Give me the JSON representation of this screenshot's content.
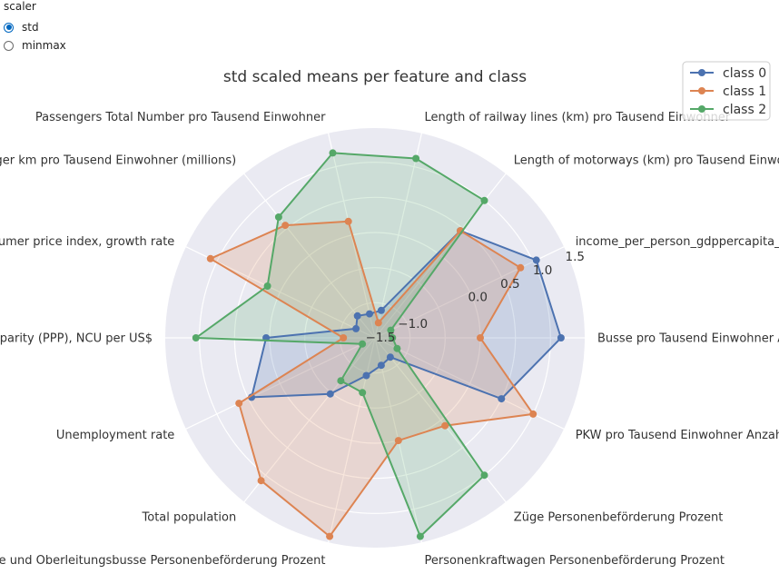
{
  "widget": {
    "title": "scaler",
    "options": [
      {
        "label": "std",
        "checked": true
      },
      {
        "label": "minmax",
        "checked": false
      }
    ]
  },
  "chart_data": {
    "type": "radar",
    "title": "std scaled means  per feature and class",
    "axes": [
      "Busse pro Tausend Einwohner Anzahl",
      "PKW pro Tausend Einwohner Anzahl",
      "Züge Personenbeförderung Prozent",
      "Personenkraftwagen Personenbeförderung Prozent",
      "Busse, Reisebusse und Oberleitungsbusse Personenbeförderung Prozent",
      "Total population",
      "Unemployment rate",
      "Purchasing power parity (PPP), NCU per US$",
      "Consumer price index, growth rate",
      "Passenger km pro Tausend Einwohner (millions)",
      "Passengers Total Number pro Tausend Einwohner",
      "Length of railway lines (km) pro Tausend Einwohner",
      "Length of motorways (km) pro Tausend Einwohner",
      "income_per_person_gdppercapita_ppp_inflation_adjusted"
    ],
    "rlim": [
      -1.5,
      1.5
    ],
    "rticks": [
      "1.5",
      "1.0",
      "0.5",
      "0.0",
      "−1.0",
      "−1.5"
    ],
    "rtick_values": [
      1.5,
      1.0,
      0.5,
      0.0,
      -1.0,
      -1.5
    ],
    "series": [
      {
        "name": "class 0",
        "color": "#4c72b0",
        "values": [
          1.15,
          0.5,
          -1.15,
          -1.1,
          -0.95,
          -0.48,
          0.45,
          0.05,
          -1.2,
          -1.1,
          -1.15,
          -1.1,
          0.45,
          1.05
        ]
      },
      {
        "name": "class 1",
        "color": "#dd8452",
        "values": [
          0.0,
          1.0,
          0.1,
          0.0,
          1.4,
          1.1,
          0.65,
          -1.05,
          1.1,
          0.55,
          0.2,
          -1.28,
          0.45,
          0.8
        ]
      },
      {
        "name": "class 2",
        "color": "#55a868",
        "values": [
          -1.25,
          -1.15,
          1.0,
          1.4,
          -0.7,
          -0.72,
          -1.3,
          1.05,
          0.2,
          0.7,
          1.2,
          1.12,
          1.0,
          -1.25
        ]
      }
    ],
    "legend": "top-right",
    "grid": true
  }
}
